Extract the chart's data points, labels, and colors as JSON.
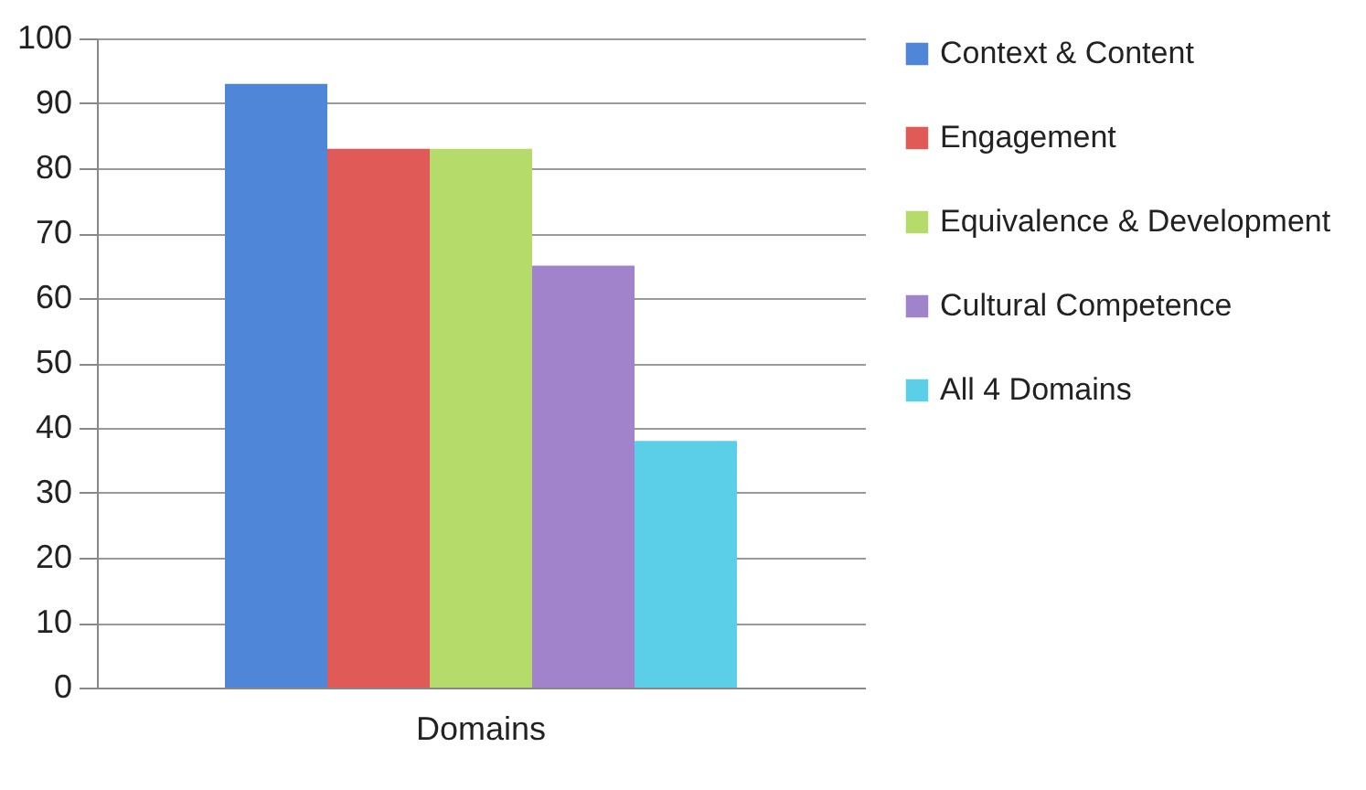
{
  "chart_data": {
    "type": "bar",
    "categories": [
      "Domains"
    ],
    "series": [
      {
        "name": "Context & Content",
        "color": "#4f86d8",
        "values": [
          93
        ]
      },
      {
        "name": "Engagement",
        "color": "#e05a57",
        "values": [
          83
        ]
      },
      {
        "name": "Equivalence & Development",
        "color": "#b5dc6a",
        "values": [
          83
        ]
      },
      {
        "name": "Cultural Competence",
        "color": "#a183cc",
        "values": [
          65
        ]
      },
      {
        "name": "All 4 Domains",
        "color": "#5ccfe8",
        "values": [
          38
        ]
      }
    ],
    "ylim": [
      0,
      100
    ],
    "yticks": [
      0,
      10,
      20,
      30,
      40,
      50,
      60,
      70,
      80,
      90,
      100
    ],
    "grid": "y",
    "legend": "right"
  }
}
